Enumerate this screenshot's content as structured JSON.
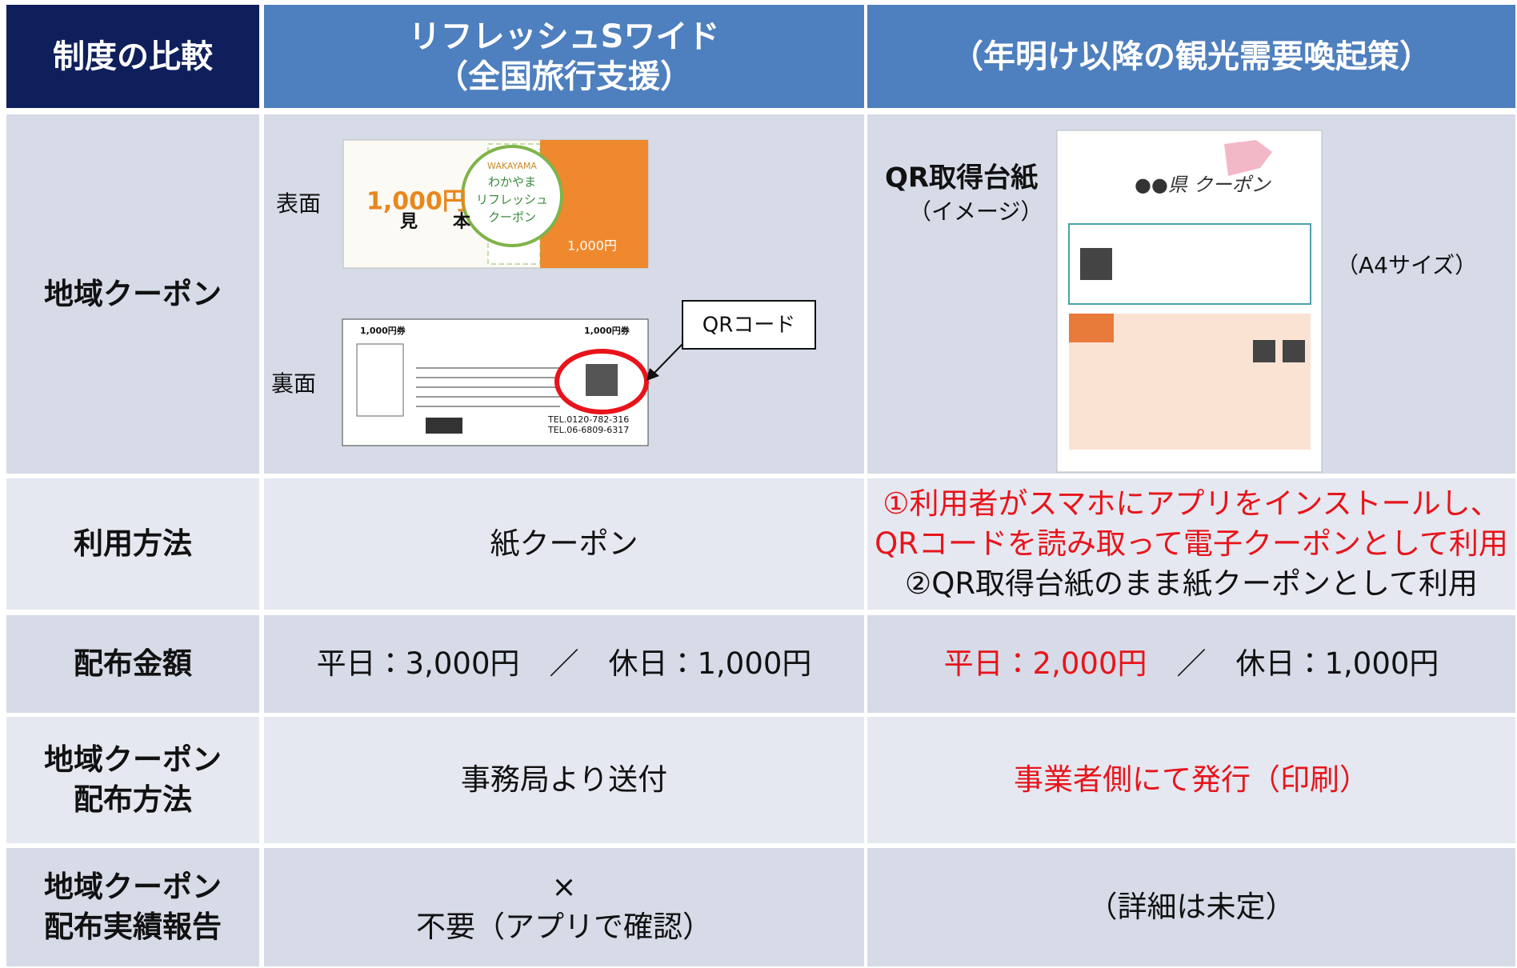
{
  "header": {
    "corner": "制度の比較",
    "col1": [
      "リフレッシュSワイド",
      "（全国旅行支援）"
    ],
    "col2": [
      "（年明け以降の観光需要喚起策）"
    ]
  },
  "rows": [
    {
      "label": [
        "地域クーポン"
      ]
    },
    {
      "label": [
        "利用方法"
      ],
      "col1": [
        [
          {
            "text": "紙クーポン",
            "color": "#111111"
          }
        ]
      ],
      "col2": [
        [
          {
            "text": "①利用者がスマホにアプリをインストールし、",
            "color": "#e8141b"
          }
        ],
        [
          {
            "text": "QRコードを読み取って電子クーポンとして利用",
            "color": "#e8141b"
          }
        ],
        [
          {
            "text": "②QR取得台紙のまま紙クーポンとして利用",
            "color": "#111111"
          }
        ]
      ]
    },
    {
      "label": [
        "配布金額"
      ],
      "col1": [
        [
          {
            "text": "平日：3,000円　／　休日：1,000円",
            "color": "#111111"
          }
        ]
      ],
      "col2": [
        [
          {
            "text": "平日：2,000円",
            "color": "#e8141b"
          },
          {
            "text": "　／　休日：1,000円",
            "color": "#111111"
          }
        ]
      ]
    },
    {
      "label": [
        "地域クーポン",
        "配布方法"
      ],
      "col1": [
        [
          {
            "text": "事務局より送付",
            "color": "#111111"
          }
        ]
      ],
      "col2": [
        [
          {
            "text": "事業者側にて発行（印刷）",
            "color": "#e8141b"
          }
        ]
      ]
    },
    {
      "label": [
        "地域クーポン",
        "配布実績報告"
      ],
      "col1": [
        [
          {
            "text": "×",
            "color": "#111111"
          }
        ],
        [
          {
            "text": "不要（アプリで確認）",
            "color": "#111111"
          }
        ]
      ],
      "col2": [
        [
          {
            "text": "（詳細は未定）",
            "color": "#111111"
          }
        ]
      ]
    }
  ],
  "coupon_images": {
    "front_label": "表面",
    "back_label": "裏面",
    "qr_callout": "QRコード",
    "brand": "WAKAYAMA",
    "front_title": [
      "わかやま",
      "リフレッシュ",
      "クーポン"
    ],
    "front_amount": "1,000円",
    "watermark": [
      "見",
      "本"
    ],
    "back_amount": "1,000円券",
    "tel1": "TEL.0120-782-316",
    "tel2": "TEL.06-6809-6317"
  },
  "qr_sheet": {
    "title": "QR取得台紙",
    "note": "（イメージ）",
    "size": "（A4サイズ）",
    "sheet_title": "●●県 クーポン"
  }
}
